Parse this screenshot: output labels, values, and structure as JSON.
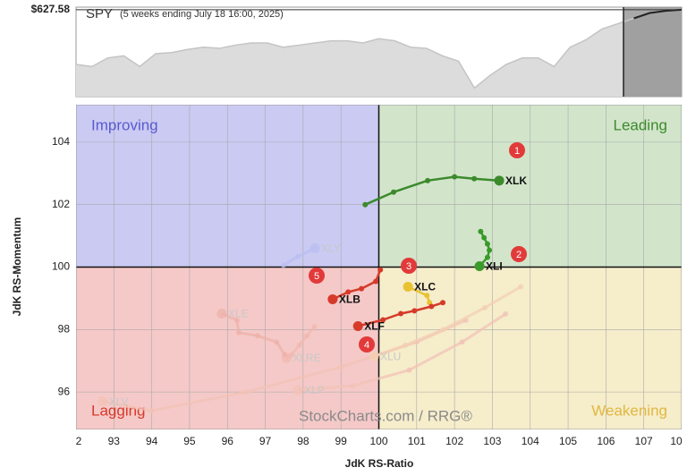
{
  "chart_data": {
    "type": "scatter",
    "benchmark": {
      "name": "SPY",
      "subtitle": "(5 weeks ending July 18 16:00, 2025)",
      "last_label": "$627.58",
      "last": 627.58,
      "ylim": [
        480,
        632
      ],
      "values": [
        534.8,
        531.1,
        545.7,
        549.3,
        531.1,
        553.0,
        554.8,
        560.2,
        563.9,
        562.0,
        567.5,
        571.2,
        571.2,
        563.9,
        567.5,
        571.2,
        574.8,
        574.8,
        571.2,
        578.4,
        574.8,
        563.9,
        562.0,
        549.3,
        540.2,
        494.7,
        516.6,
        534.8,
        545.7,
        545.7,
        531.1,
        563.9,
        576.6,
        594.8,
        603.9,
        613.0,
        622.1,
        625.8,
        627.58
      ]
    },
    "x_label": "JdK RS-Ratio",
    "y_label": "JdK RS-Momentum",
    "quadrants": {
      "improving": "Improving",
      "leading": "Leading",
      "lagging": "Lagging",
      "weakening": "Weakening"
    },
    "center": [
      100,
      100
    ],
    "watermark": "StockCharts.com / RRG®",
    "xlim": [
      92,
      108
    ],
    "ylim": [
      94.8,
      105.2
    ],
    "xticks": [
      {
        "value": 92,
        "label": "2"
      },
      93,
      94,
      95,
      96,
      97,
      98,
      99,
      100,
      101,
      102,
      103,
      104,
      105,
      106,
      107,
      {
        "value": 108,
        "label": "10"
      }
    ],
    "yticks": [
      96,
      98,
      100,
      102,
      104
    ],
    "grid": true,
    "annotations": [
      "1",
      "2",
      "3",
      "4",
      "5"
    ],
    "series": [
      {
        "name": "XLV",
        "color": "#f2c2b6",
        "faded": true,
        "x": [
          102.3,
          101.0,
          99.0,
          96.5,
          94.0,
          92.7
        ],
        "y": [
          98.3,
          97.6,
          96.8,
          96.0,
          95.4,
          95.7
        ]
      },
      {
        "name": "XLP",
        "color": "#f2c2b6",
        "faded": true,
        "x": [
          103.35,
          102.2,
          100.8,
          99.3,
          97.86
        ],
        "y": [
          98.5,
          97.6,
          96.7,
          96.2,
          96.06
        ]
      },
      {
        "name": "XLU",
        "color": "#f3cfb2",
        "faded": true,
        "x": [
          103.75,
          102.8,
          101.7,
          100.7,
          99.87
        ],
        "y": [
          99.37,
          98.7,
          98.0,
          97.5,
          97.14
        ]
      },
      {
        "name": "XLRE",
        "color": "#f0b8b0",
        "faded": true,
        "x": [
          98.3,
          98.1,
          97.9,
          97.7,
          97.56
        ],
        "y": [
          98.1,
          97.8,
          97.5,
          97.2,
          97.09
        ]
      },
      {
        "name": "XLE",
        "color": "#eeb2aa",
        "faded": true,
        "x": [
          97.51,
          97.3,
          96.8,
          96.3,
          96.25,
          95.85
        ],
        "y": [
          97.2,
          97.6,
          97.8,
          97.9,
          98.3,
          98.51
        ]
      },
      {
        "name": "XLY",
        "color": "#b9bdf0",
        "faded": true,
        "x": [
          97.48,
          97.86,
          98.31
        ],
        "y": [
          100.06,
          100.34,
          100.6
        ]
      },
      {
        "name": "XLK",
        "color": "#3c8a2c",
        "x": [
          99.64,
          100.39,
          101.29,
          102.0,
          102.52,
          103.18
        ],
        "y": [
          102.0,
          102.4,
          102.77,
          102.89,
          102.83,
          102.77
        ]
      },
      {
        "name": "XLI",
        "color": "#3a9a2a",
        "x": [
          102.69,
          102.78,
          102.87,
          102.92,
          102.87,
          102.66
        ],
        "y": [
          101.14,
          100.94,
          100.74,
          100.54,
          100.31,
          100.03
        ]
      },
      {
        "name": "XLC",
        "color": "#e8c232",
        "x": [
          101.34,
          101.27,
          100.77
        ],
        "y": [
          98.86,
          99.09,
          99.37
        ]
      },
      {
        "name": "XLF",
        "color": "#d63a2a",
        "x": [
          101.69,
          101.39,
          100.94,
          100.58,
          100.11,
          99.45
        ],
        "y": [
          98.86,
          98.74,
          98.6,
          98.51,
          98.31,
          98.11
        ]
      },
      {
        "name": "XLB",
        "color": "#d63a2a",
        "x": [
          100.04,
          99.92,
          99.54,
          99.19,
          98.78
        ],
        "y": [
          99.91,
          99.54,
          99.31,
          99.2,
          98.97
        ]
      }
    ]
  }
}
